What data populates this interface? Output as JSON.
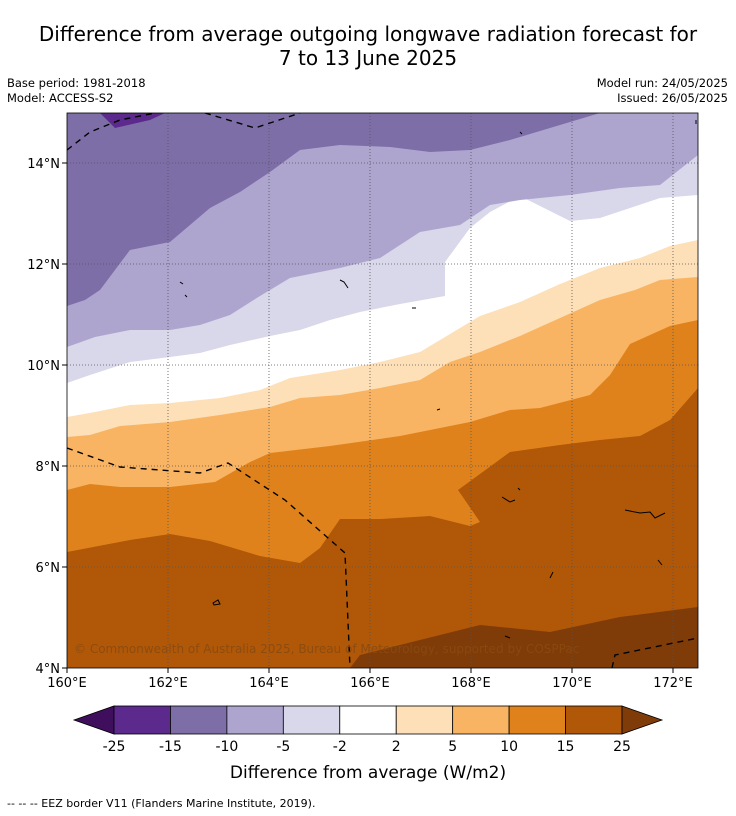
{
  "title_line1": "Difference from average outgoing longwave radiation forecast for",
  "title_line2": "7 to 13 June 2025",
  "base_period": "Base period: 1981-2018",
  "model": "Model: ACCESS-S2",
  "model_run": "Model run: 24/05/2025",
  "issued": "Issued: 26/05/2025",
  "copyright": "© Commonwealth of Australia 2025, Bureau of Meteorology, supported by COSPPac",
  "lat_labels": [
    "14°N",
    "12°N",
    "10°N",
    "8°N",
    "6°N",
    "4°N"
  ],
  "lon_labels": [
    "160°E",
    "162°E",
    "164°E",
    "166°E",
    "168°E",
    "170°E",
    "172°E"
  ],
  "colorbar": {
    "title": "Difference from average (W/m2)",
    "tick_labels": [
      "-25",
      "-15",
      "-10",
      "-5",
      "-2",
      "2",
      "5",
      "10",
      "15",
      "25"
    ],
    "colors": [
      "#3f0f5e",
      "#5b2a8c",
      "#7e6ea8",
      "#aea5cf",
      "#d9d7ea",
      "#ffffff",
      "#fde0b8",
      "#f8b462",
      "#e0821c",
      "#b05808",
      "#7f3b08"
    ]
  },
  "footer": "--  --  -- EEZ border V11 (Flanders Marine Institute, 2019)."
}
